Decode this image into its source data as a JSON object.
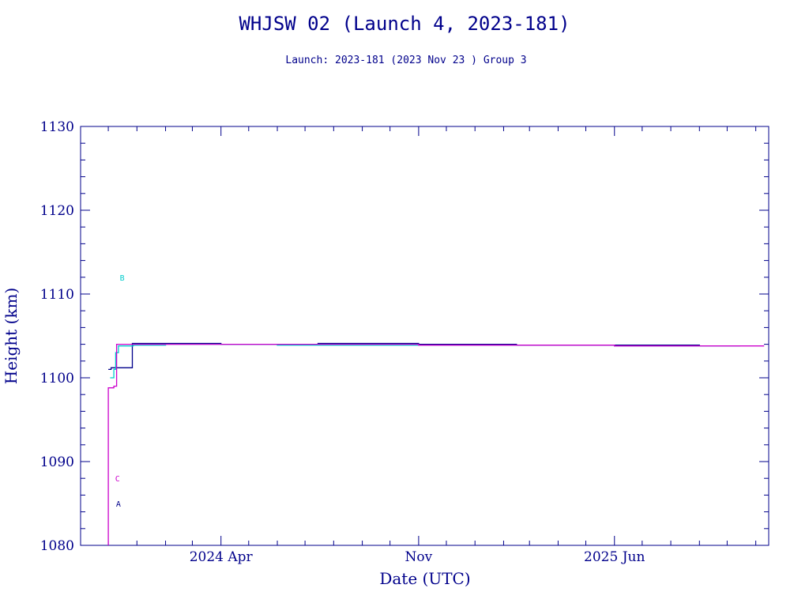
{
  "chart_data": {
    "type": "line",
    "title": "WHJSW 02 (Launch 4, 2023-181)",
    "subtitle": "Launch: 2023-181  (2023 Nov 23 )  Group 3",
    "xlabel": "Date (UTC)",
    "ylabel": "Height (km)",
    "xlim": [
      "2023-11-01",
      "2025-11-15"
    ],
    "ylim": [
      1080,
      1130
    ],
    "grid": false,
    "x_ticks": [
      {
        "date": "2024-04-01",
        "label": "2024 Apr"
      },
      {
        "date": "2024-11-01",
        "label": "Nov"
      },
      {
        "date": "2025-06-01",
        "label": "2025 Jun"
      }
    ],
    "y_ticks": [
      1080,
      1090,
      1100,
      1110,
      1120,
      1130
    ],
    "series": [
      {
        "name": "A",
        "color": "#00008b",
        "label": {
          "date": "2023-12-12",
          "height": 1085
        },
        "points": [
          {
            "date": "2023-12-01",
            "height": 1101.0
          },
          {
            "date": "2023-12-03",
            "height": 1101.0
          },
          {
            "date": "2023-12-04",
            "height": 1101.2
          },
          {
            "date": "2023-12-26",
            "height": 1101.2
          },
          {
            "date": "2023-12-27",
            "height": 1104.1
          },
          {
            "date": "2024-02-15",
            "height": 1104.1
          },
          {
            "date": "2024-04-01",
            "height": 1104.0
          },
          {
            "date": "2024-06-10",
            "height": 1104.0
          },
          {
            "date": "2024-07-15",
            "height": 1104.1
          },
          {
            "date": "2024-11-01",
            "height": 1104.0
          },
          {
            "date": "2025-02-15",
            "height": 1103.9
          },
          {
            "date": "2025-06-01",
            "height": 1103.9
          },
          {
            "date": "2025-09-01",
            "height": 1103.8
          }
        ]
      },
      {
        "name": "B",
        "color": "#00cccc",
        "label": {
          "date": "2023-12-16",
          "height": 1112
        },
        "points": [
          {
            "date": "2023-12-03",
            "height": 1100.0
          },
          {
            "date": "2023-12-07",
            "height": 1101.0
          },
          {
            "date": "2023-12-09",
            "height": 1103.0
          },
          {
            "date": "2023-12-12",
            "height": 1103.8
          },
          {
            "date": "2023-12-28",
            "height": 1103.9
          },
          {
            "date": "2024-02-01",
            "height": 1104.0
          },
          {
            "date": "2024-06-01",
            "height": 1103.9
          },
          {
            "date": "2024-08-01",
            "height": 1103.9
          },
          {
            "date": "2024-11-01",
            "height": 1103.9
          },
          {
            "date": "2025-06-01",
            "height": 1103.8
          },
          {
            "date": "2025-10-15",
            "height": 1103.8
          }
        ]
      },
      {
        "name": "C",
        "color": "#cc00cc",
        "label": {
          "date": "2023-12-11",
          "height": 1088
        },
        "points": [
          {
            "date": "2023-12-01",
            "height": 1080.0
          },
          {
            "date": "2023-12-01",
            "height": 1098.8
          },
          {
            "date": "2023-12-06",
            "height": 1098.8
          },
          {
            "date": "2023-12-07",
            "height": 1099.0
          },
          {
            "date": "2023-12-09",
            "height": 1099.0
          },
          {
            "date": "2023-12-10",
            "height": 1104.0
          },
          {
            "date": "2024-04-01",
            "height": 1104.0
          },
          {
            "date": "2024-11-01",
            "height": 1103.9
          },
          {
            "date": "2025-06-01",
            "height": 1103.8
          },
          {
            "date": "2025-11-10",
            "height": 1103.8
          }
        ]
      }
    ]
  }
}
